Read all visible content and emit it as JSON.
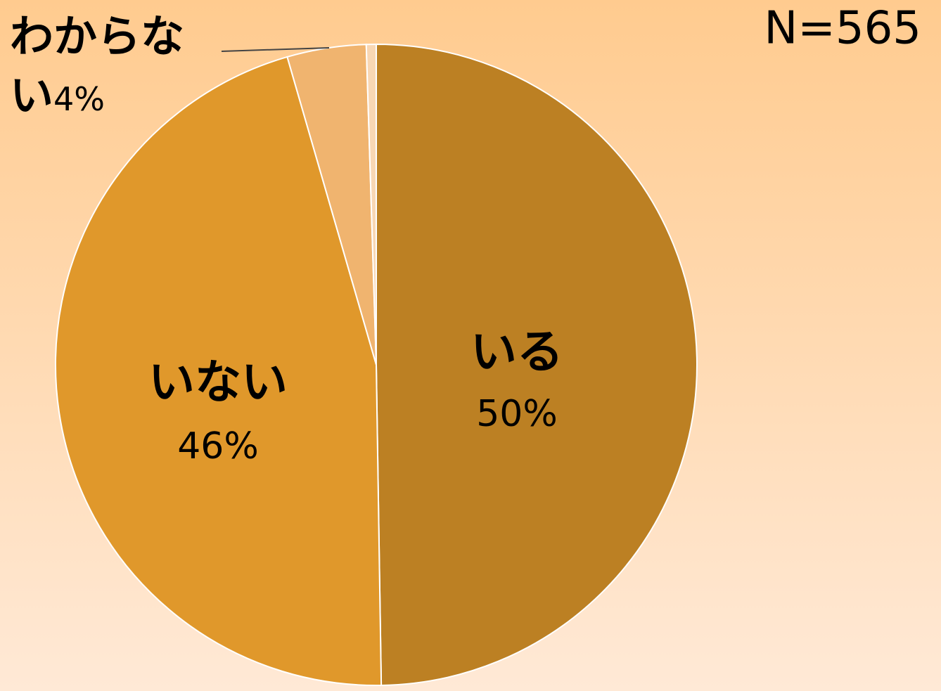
{
  "chart_data": {
    "type": "pie",
    "categories": [
      "いる",
      "いない",
      "わからない",
      null
    ],
    "values": [
      50,
      46,
      4,
      0.5
    ],
    "value_labels": [
      "50%",
      "46%",
      "4%",
      null
    ],
    "colors": [
      "#BC8023",
      "#E0982B",
      "#F0B46F",
      "#F8D7B4"
    ],
    "annotation": "N=565"
  }
}
